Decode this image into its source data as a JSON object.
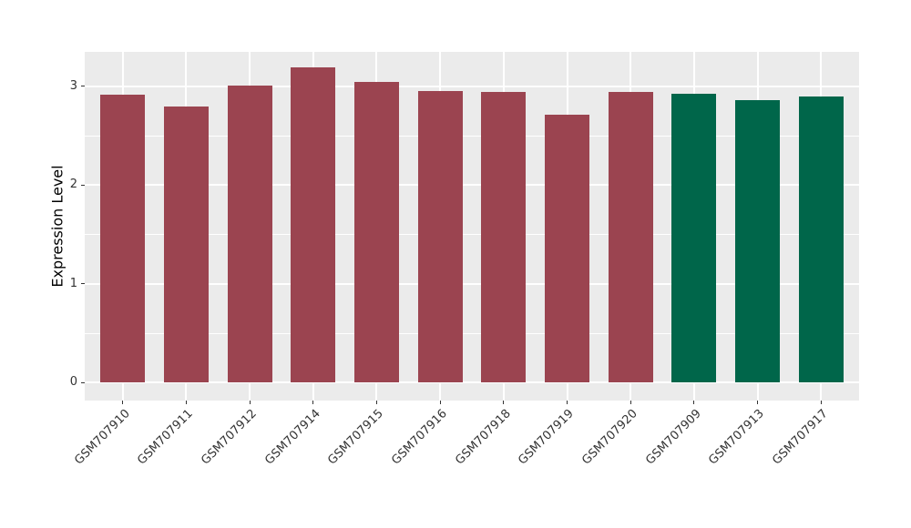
{
  "chart_data": {
    "type": "bar",
    "title": "",
    "ylabel": "Expression Level",
    "xlabel": "",
    "categories": [
      "GSM707910",
      "GSM707911",
      "GSM707912",
      "GSM707914",
      "GSM707915",
      "GSM707916",
      "GSM707918",
      "GSM707919",
      "GSM707920",
      "GSM707909",
      "GSM707913",
      "GSM707917"
    ],
    "values": [
      2.92,
      2.8,
      3.01,
      3.19,
      3.05,
      2.95,
      2.94,
      2.71,
      2.94,
      2.93,
      2.86,
      2.9
    ],
    "groups": [
      "red",
      "red",
      "red",
      "red",
      "red",
      "red",
      "red",
      "red",
      "red",
      "green",
      "green",
      "green"
    ],
    "group_colors": {
      "red": "#9B4450",
      "green": "#00664A"
    },
    "yticks": [
      0,
      1,
      2,
      3
    ],
    "yticks_minor": [
      0.5,
      1.5,
      2.5
    ],
    "ylim": [
      -0.18,
      3.35
    ],
    "bar_width_ratio": 0.7,
    "x_tick_rotation": -45,
    "panel_background": "#EBEBEB",
    "grid_major_color": "#FFFFFF",
    "grid_minor_color": "#FFFFFF",
    "axis_text_color": "#333333",
    "axis_title_color": "#000000",
    "tick_mark_color": "#333333",
    "legend_position": "none",
    "grid": "on"
  }
}
